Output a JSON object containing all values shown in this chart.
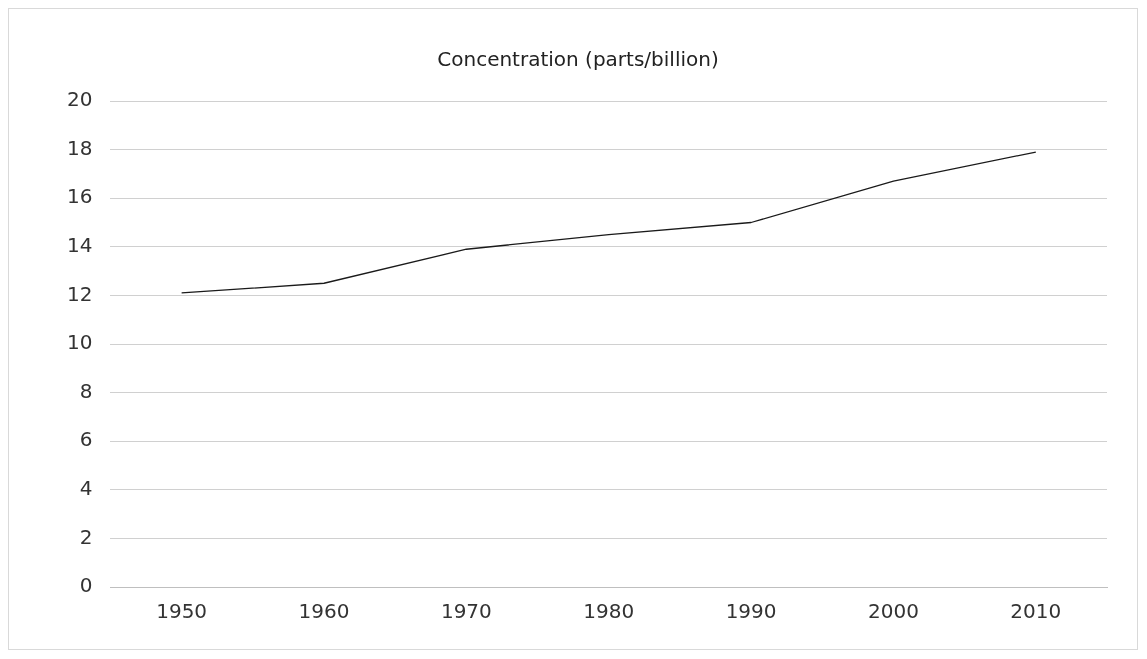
{
  "chart_data": {
    "type": "line",
    "title": "Concentration (parts/billion)",
    "categories": [
      "1950",
      "1960",
      "1970",
      "1980",
      "1990",
      "2000",
      "2010"
    ],
    "series": [
      {
        "color": "#1a1a1a",
        "values": [
          12.1,
          12.5,
          13.9,
          14.5,
          15.0,
          16.7,
          17.9
        ]
      }
    ],
    "ylim": [
      0,
      20
    ],
    "yticks": [
      0,
      2,
      4,
      6,
      8,
      10,
      12,
      14,
      16,
      18,
      20
    ],
    "grid": "y",
    "legend": false,
    "marker": "none",
    "line_style": "solid"
  }
}
